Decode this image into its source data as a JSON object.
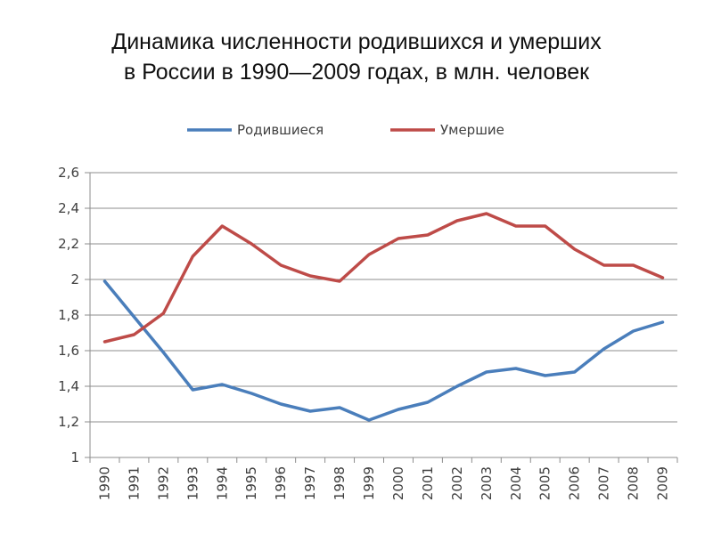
{
  "title_line1": "Динамика численности родившихся и умерших",
  "title_line2": "в России в 1990—2009 годах, в млн. человек",
  "chart_data": {
    "type": "line",
    "x": [
      "1990",
      "1991",
      "1992",
      "1993",
      "1994",
      "1995",
      "1996",
      "1997",
      "1998",
      "1999",
      "2000",
      "2001",
      "2002",
      "2003",
      "2004",
      "2005",
      "2006",
      "2007",
      "2008",
      "2009"
    ],
    "series": [
      {
        "name": "Родившиеся",
        "color": "#4a7ebb",
        "values": [
          1.99,
          1.79,
          1.59,
          1.38,
          1.41,
          1.36,
          1.3,
          1.26,
          1.28,
          1.21,
          1.27,
          1.31,
          1.4,
          1.48,
          1.5,
          1.46,
          1.48,
          1.61,
          1.71,
          1.76
        ]
      },
      {
        "name": "Умершие",
        "color": "#be4b48",
        "values": [
          1.65,
          1.69,
          1.81,
          2.13,
          2.3,
          2.2,
          2.08,
          2.02,
          1.99,
          2.14,
          2.23,
          2.25,
          2.33,
          2.37,
          2.3,
          2.3,
          2.17,
          2.08,
          2.08,
          2.01
        ]
      }
    ],
    "y_ticks": [
      "1",
      "1,2",
      "1,4",
      "1,6",
      "1,8",
      "2",
      "2,2",
      "2,4",
      "2,6"
    ],
    "ylim": [
      1,
      2.6
    ],
    "grid": true,
    "legend_position": "top"
  }
}
